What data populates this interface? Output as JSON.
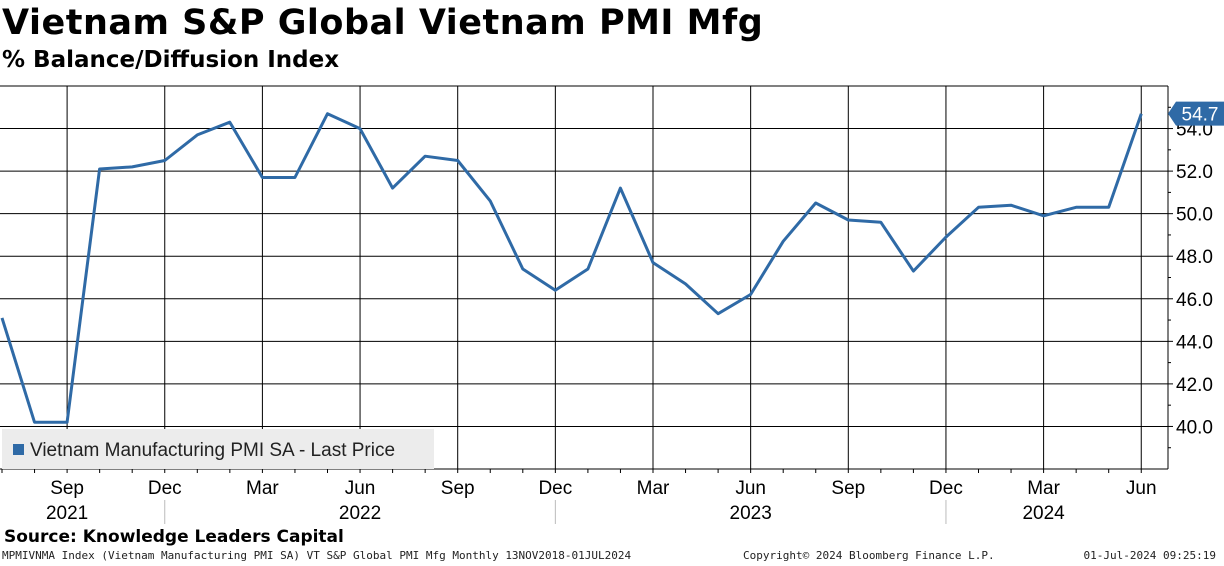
{
  "header": {
    "title": "Vietnam S&P Global Vietnam PMI Mfg",
    "subtitle": "% Balance/Diffusion Index"
  },
  "footer": {
    "source": "Source: Knowledge Leaders Capital",
    "info": "MPMIVNMA Index (Vietnam Manufacturing PMI SA) VT S&P Global PMI Mfg  Monthly 13NOV2018-01JUL2024",
    "copyright": "Copyright© 2024 Bloomberg Finance L.P.",
    "timestamp": "01-Jul-2024 09:25:19"
  },
  "chart_data": {
    "type": "line",
    "series": [
      {
        "name": "Vietnam Manufacturing PMI SA - Last Price",
        "color": "#2f6aa6",
        "x": [
          "2021-07",
          "2021-08",
          "2021-09",
          "2021-10",
          "2021-11",
          "2021-12",
          "2022-01",
          "2022-02",
          "2022-03",
          "2022-04",
          "2022-05",
          "2022-06",
          "2022-07",
          "2022-08",
          "2022-09",
          "2022-10",
          "2022-11",
          "2022-12",
          "2023-01",
          "2023-02",
          "2023-03",
          "2023-04",
          "2023-05",
          "2023-06",
          "2023-07",
          "2023-08",
          "2023-09",
          "2023-10",
          "2023-11",
          "2023-12",
          "2024-01",
          "2024-02",
          "2024-03",
          "2024-04",
          "2024-05",
          "2024-06"
        ],
        "values": [
          45.1,
          40.2,
          40.2,
          52.1,
          52.2,
          52.5,
          53.7,
          54.3,
          51.7,
          51.7,
          54.7,
          54.0,
          51.2,
          52.7,
          52.5,
          50.6,
          47.4,
          46.4,
          47.4,
          51.2,
          47.7,
          46.7,
          45.3,
          46.2,
          48.7,
          50.5,
          49.7,
          49.6,
          47.3,
          48.9,
          50.3,
          50.4,
          49.9,
          50.3,
          50.3,
          54.7
        ]
      }
    ],
    "last_value_label": "54.7",
    "ylim": [
      38,
      56
    ],
    "y_ticks": [
      40.0,
      42.0,
      44.0,
      46.0,
      48.0,
      50.0,
      52.0,
      54.0
    ],
    "y_axis_position": "right",
    "x_ticks": [
      {
        "label": "Sep",
        "date": "2021-09"
      },
      {
        "label": "Dec",
        "date": "2021-12"
      },
      {
        "label": "Mar",
        "date": "2022-03"
      },
      {
        "label": "Jun",
        "date": "2022-06"
      },
      {
        "label": "Sep",
        "date": "2022-09"
      },
      {
        "label": "Dec",
        "date": "2022-12"
      },
      {
        "label": "Mar",
        "date": "2023-03"
      },
      {
        "label": "Jun",
        "date": "2023-06"
      },
      {
        "label": "Sep",
        "date": "2023-09"
      },
      {
        "label": "Dec",
        "date": "2023-12"
      },
      {
        "label": "Mar",
        "date": "2024-03"
      },
      {
        "label": "Jun",
        "date": "2024-06"
      }
    ],
    "year_labels": [
      {
        "label": "2021",
        "date": "2021-09"
      },
      {
        "label": "2022",
        "date": "2022-06"
      },
      {
        "label": "2023",
        "date": "2023-06"
      },
      {
        "label": "2024",
        "date": "2024-03"
      }
    ],
    "year_separators": [
      "2021-12",
      "2022-12",
      "2023-12"
    ],
    "grid": true,
    "legend_position": "bottom-left"
  }
}
